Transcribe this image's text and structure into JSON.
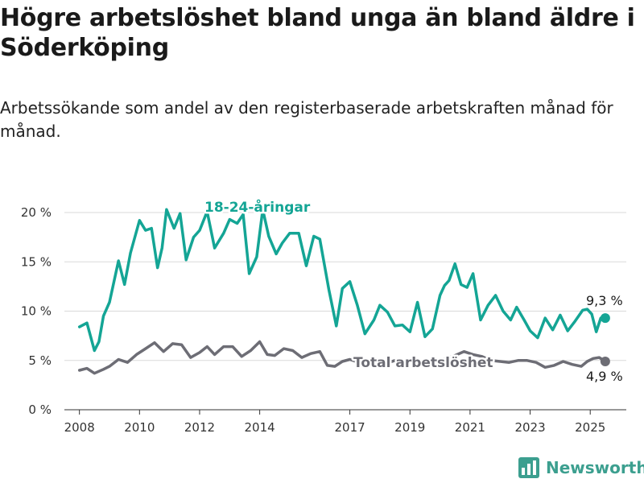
{
  "title": "Högre arbetslöshet bland unga än bland äldre i Söderköping",
  "subtitle": "Arbetssökande som andel av den registerbaserade arbetskraften månad för månad.",
  "brand": {
    "name": "Newsworthy",
    "icon": "bar-chart-logo-icon",
    "color": "#3c9f8f"
  },
  "chart_data": {
    "type": "line",
    "title": "Högre arbetslöshet bland unga än bland äldre i Söderköping",
    "subtitle": "Arbetssökande som andel av den registerbaserade arbetskraften månad för månad.",
    "xlabel": "",
    "ylabel": "",
    "xlim": [
      2007.5,
      2026.2
    ],
    "ylim": [
      0,
      20
    ],
    "grid": "horizontal",
    "x_ticks": [
      2008,
      2010,
      2012,
      2014,
      2017,
      2019,
      2021,
      2023,
      2025
    ],
    "y_ticks": [
      0,
      5,
      10,
      15,
      20
    ],
    "y_tick_labels": [
      "0 %",
      "5 %",
      "10 %",
      "15 %",
      "20 %"
    ],
    "series": [
      {
        "name": "18-24-åringar",
        "color": "#14a595",
        "end_label": "9,3 %",
        "x": [
          2008.0,
          2008.25,
          2008.5,
          2008.65,
          2008.8,
          2009.0,
          2009.3,
          2009.5,
          2009.7,
          2010.0,
          2010.2,
          2010.4,
          2010.6,
          2010.75,
          2010.9,
          2011.15,
          2011.35,
          2011.55,
          2011.8,
          2012.0,
          2012.25,
          2012.5,
          2012.8,
          2013.0,
          2013.25,
          2013.45,
          2013.65,
          2013.9,
          2014.1,
          2014.3,
          2014.55,
          2014.75,
          2015.0,
          2015.3,
          2015.55,
          2015.8,
          2016.0,
          2016.3,
          2016.55,
          2016.75,
          2017.0,
          2017.25,
          2017.5,
          2017.8,
          2018.0,
          2018.25,
          2018.5,
          2018.75,
          2019.0,
          2019.25,
          2019.5,
          2019.75,
          2020.0,
          2020.15,
          2020.3,
          2020.5,
          2020.7,
          2020.9,
          2021.1,
          2021.35,
          2021.6,
          2021.85,
          2022.1,
          2022.35,
          2022.55,
          2022.8,
          2023.0,
          2023.25,
          2023.5,
          2023.75,
          2024.0,
          2024.25,
          2024.5,
          2024.75,
          2024.9,
          2025.05,
          2025.2,
          2025.35,
          2025.5
        ],
        "values": [
          8.4,
          8.8,
          6.0,
          6.9,
          9.5,
          10.9,
          15.1,
          12.7,
          15.9,
          19.2,
          18.2,
          18.4,
          14.4,
          16.4,
          20.3,
          18.4,
          19.9,
          15.2,
          17.5,
          18.2,
          20.1,
          16.4,
          17.9,
          19.3,
          18.9,
          19.8,
          13.8,
          15.5,
          20.3,
          17.6,
          15.8,
          16.9,
          17.9,
          17.9,
          14.6,
          17.6,
          17.3,
          12.2,
          8.5,
          12.3,
          13.0,
          10.6,
          7.7,
          9.1,
          10.6,
          9.9,
          8.5,
          8.6,
          7.9,
          10.9,
          7.4,
          8.2,
          11.6,
          12.6,
          13.1,
          14.8,
          12.7,
          12.4,
          13.8,
          9.1,
          10.6,
          11.6,
          10.0,
          9.1,
          10.4,
          9.1,
          8.0,
          7.3,
          9.3,
          8.1,
          9.6,
          8.0,
          9.0,
          10.1,
          10.2,
          9.7,
          7.9,
          9.3,
          9.3
        ]
      },
      {
        "name": "Total arbetslöshet",
        "color": "#6d6d75",
        "end_label": "4,9 %",
        "x": [
          2008.0,
          2008.25,
          2008.5,
          2008.8,
          2009.0,
          2009.3,
          2009.6,
          2009.9,
          2010.2,
          2010.5,
          2010.8,
          2011.1,
          2011.4,
          2011.7,
          2012.0,
          2012.25,
          2012.5,
          2012.8,
          2013.1,
          2013.4,
          2013.7,
          2014.0,
          2014.25,
          2014.5,
          2014.8,
          2015.1,
          2015.4,
          2015.7,
          2016.0,
          2016.25,
          2016.5,
          2016.75,
          2017.0,
          2017.3,
          2017.6,
          2017.9,
          2018.2,
          2018.5,
          2018.8,
          2019.1,
          2019.4,
          2019.7,
          2020.0,
          2020.3,
          2020.5,
          2020.8,
          2021.1,
          2021.4,
          2021.7,
          2022.0,
          2022.3,
          2022.6,
          2022.9,
          2023.2,
          2023.5,
          2023.8,
          2024.1,
          2024.4,
          2024.7,
          2024.9,
          2025.1,
          2025.3,
          2025.5
        ],
        "values": [
          4.0,
          4.2,
          3.7,
          4.1,
          4.4,
          5.1,
          4.8,
          5.6,
          6.2,
          6.8,
          5.9,
          6.7,
          6.6,
          5.3,
          5.8,
          6.4,
          5.6,
          6.4,
          6.4,
          5.4,
          6.0,
          6.9,
          5.6,
          5.5,
          6.2,
          6.0,
          5.3,
          5.7,
          5.9,
          4.5,
          4.4,
          4.9,
          5.1,
          4.8,
          4.9,
          4.9,
          4.7,
          5.0,
          4.8,
          4.9,
          4.9,
          5.0,
          5.0,
          5.3,
          5.5,
          5.9,
          5.6,
          5.4,
          5.0,
          4.9,
          4.8,
          5.0,
          5.0,
          4.8,
          4.3,
          4.5,
          4.9,
          4.6,
          4.4,
          4.9,
          5.2,
          5.3,
          4.9
        ]
      }
    ]
  }
}
